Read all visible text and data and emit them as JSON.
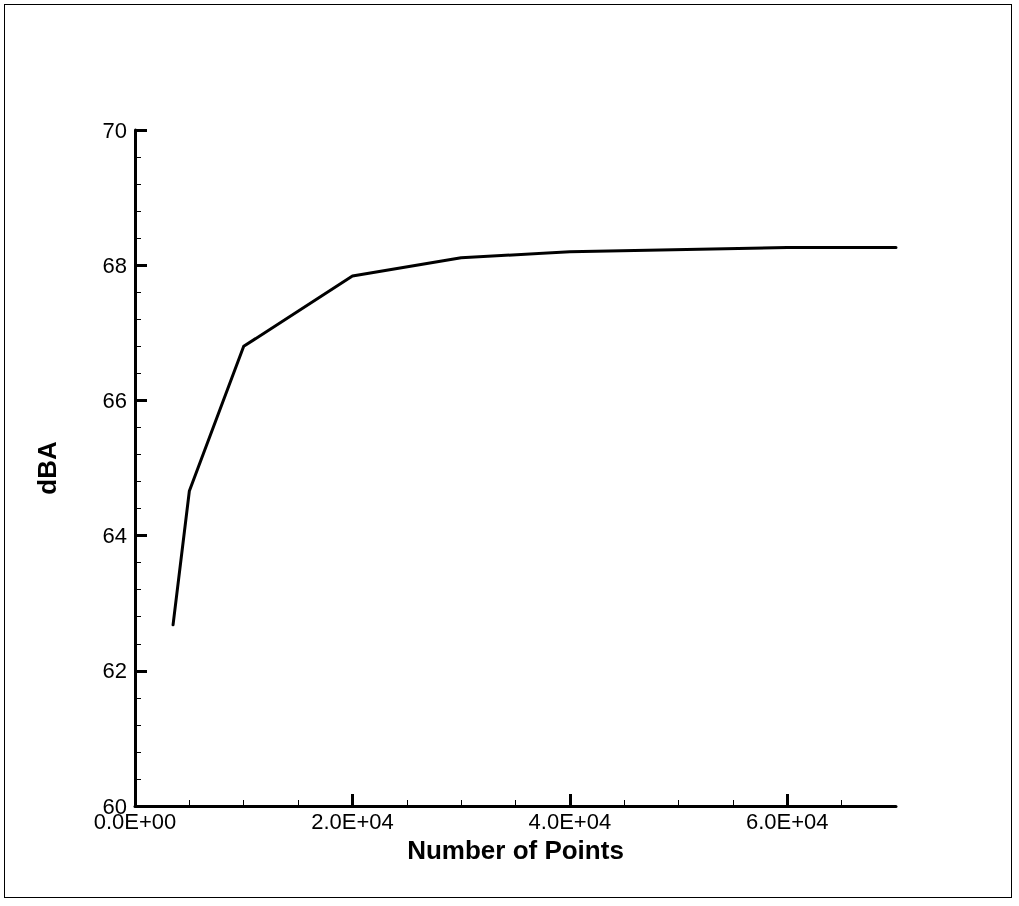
{
  "chart_data": {
    "type": "line",
    "xlabel": "Number of Points",
    "ylabel": "dBA",
    "x": [
      3500,
      5000,
      10000,
      20000,
      30000,
      40000,
      60000,
      70000
    ],
    "series": [
      {
        "color": "#000000",
        "values": [
          62.68,
          64.66,
          66.8,
          67.84,
          68.11,
          68.2,
          68.26,
          68.26
        ]
      }
    ],
    "xlim": [
      0,
      70000
    ],
    "xticks": [
      {
        "value": 0,
        "label": "0.0E+00"
      },
      {
        "value": 5000,
        "label": null
      },
      {
        "value": 10000,
        "label": null
      },
      {
        "value": 15000,
        "label": null
      },
      {
        "value": 20000,
        "label": "2.0E+04"
      },
      {
        "value": 25000,
        "label": null
      },
      {
        "value": 30000,
        "label": null
      },
      {
        "value": 35000,
        "label": null
      },
      {
        "value": 40000,
        "label": "4.0E+04"
      },
      {
        "value": 45000,
        "label": null
      },
      {
        "value": 50000,
        "label": null
      },
      {
        "value": 55000,
        "label": null
      },
      {
        "value": 60000,
        "label": "6.0E+04"
      },
      {
        "value": 65000,
        "label": null
      }
    ],
    "ylim": [
      60,
      70
    ],
    "yticks": [
      60,
      {
        "value": 60.4,
        "label": null
      },
      {
        "value": 60.8,
        "label": null
      },
      {
        "value": 61.2,
        "label": null
      },
      {
        "value": 61.6,
        "label": null
      },
      62,
      {
        "value": 62.4,
        "label": null
      },
      {
        "value": 62.8,
        "label": null
      },
      {
        "value": 63.2,
        "label": null
      },
      {
        "value": 63.6,
        "label": null
      },
      64,
      {
        "value": 64.4,
        "label": null
      },
      {
        "value": 64.8,
        "label": null
      },
      {
        "value": 65.2,
        "label": null
      },
      {
        "value": 65.6,
        "label": null
      },
      66,
      {
        "value": 66.4,
        "label": null
      },
      {
        "value": 66.8,
        "label": null
      },
      {
        "value": 67.2,
        "label": null
      },
      {
        "value": 67.6,
        "label": null
      },
      68,
      {
        "value": 68.4,
        "label": null
      },
      {
        "value": 68.8,
        "label": null
      },
      {
        "value": 69.2,
        "label": null
      },
      {
        "value": 69.6,
        "label": null
      },
      70
    ],
    "grid": false,
    "marker": "none",
    "line_style": "solid"
  }
}
